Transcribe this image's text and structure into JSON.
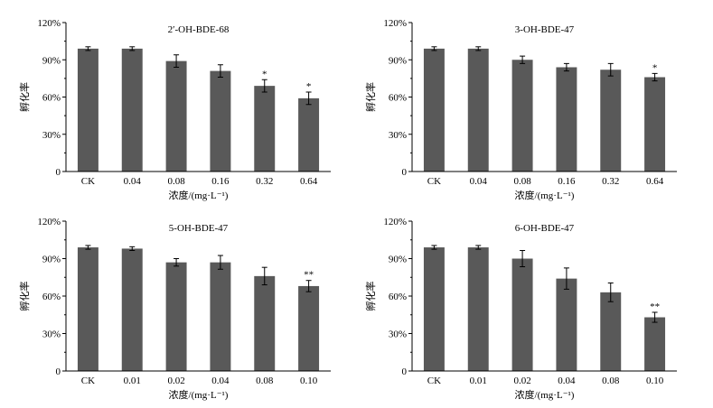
{
  "figure": {
    "bar_color": "#595959",
    "axis_color": "#000000",
    "panels": [
      {
        "id": "panel-2-oh-bde-68",
        "ylabel": "孵化率",
        "xlabel": "浓度/(mg·L⁻¹)",
        "y_ticks": [
          "0",
          "30%",
          "60%",
          "90%",
          "120%"
        ]
      },
      {
        "id": "panel-3-oh-bde-47",
        "ylabel": "孵化率",
        "xlabel": "浓度/(mg·L⁻¹)",
        "y_ticks": [
          "0",
          "30%",
          "60%",
          "90%",
          "120%"
        ]
      },
      {
        "id": "panel-5-oh-bde-47",
        "ylabel": "孵化率",
        "xlabel": "浓度/(mg·L⁻¹)",
        "y_ticks": [
          "0",
          "30%",
          "60%",
          "90%",
          "120%"
        ]
      },
      {
        "id": "panel-6-oh-bde-47",
        "ylabel": "孵化率",
        "xlabel": "浓度/(mg·L⁻¹)",
        "y_ticks": [
          "0",
          "30%",
          "60%",
          "90%",
          "120%"
        ]
      }
    ]
  },
  "chart_data": [
    {
      "type": "bar",
      "title": "2′-OH-BDE-68",
      "xlabel": "浓度/(mg·L⁻¹)",
      "ylabel": "孵化率",
      "ylim": [
        0,
        120
      ],
      "unit": "%",
      "categories": [
        "CK",
        "0.04",
        "0.08",
        "0.16",
        "0.32",
        "0.64"
      ],
      "values": [
        99,
        99,
        89,
        81,
        69,
        59
      ],
      "errors": [
        1.5,
        1.5,
        5,
        5,
        5,
        5
      ],
      "significance": [
        "",
        "",
        "",
        "",
        "*",
        "*"
      ]
    },
    {
      "type": "bar",
      "title": "3-OH-BDE-47",
      "xlabel": "浓度/(mg·L⁻¹)",
      "ylabel": "孵化率",
      "ylim": [
        0,
        120
      ],
      "unit": "%",
      "categories": [
        "CK",
        "0.04",
        "0.08",
        "0.16",
        "0.32",
        "0.64"
      ],
      "values": [
        99,
        99,
        90,
        84,
        82,
        76
      ],
      "errors": [
        1.5,
        1.5,
        3,
        3,
        5,
        3
      ],
      "significance": [
        "",
        "",
        "",
        "",
        "",
        "*"
      ]
    },
    {
      "type": "bar",
      "title": "5-OH-BDE-47",
      "xlabel": "浓度/(mg·L⁻¹)",
      "ylabel": "孵化率",
      "ylim": [
        0,
        120
      ],
      "unit": "%",
      "categories": [
        "CK",
        "0.01",
        "0.02",
        "0.04",
        "0.08",
        "0.10"
      ],
      "values": [
        99,
        98,
        87,
        87,
        76,
        68
      ],
      "errors": [
        1.5,
        1.5,
        3,
        5.5,
        7,
        4.5
      ],
      "significance": [
        "",
        "",
        "",
        "",
        "",
        "**"
      ]
    },
    {
      "type": "bar",
      "title": "6-OH-BDE-47",
      "xlabel": "浓度/(mg·L⁻¹)",
      "ylabel": "孵化率",
      "ylim": [
        0,
        120
      ],
      "unit": "%",
      "categories": [
        "CK",
        "0.01",
        "0.02",
        "0.04",
        "0.08",
        "0.10"
      ],
      "values": [
        99,
        99,
        90,
        74,
        63,
        43
      ],
      "errors": [
        1.5,
        1.5,
        6.5,
        8.5,
        7.5,
        4
      ],
      "significance": [
        "",
        "",
        "",
        "",
        "",
        "**"
      ]
    }
  ]
}
